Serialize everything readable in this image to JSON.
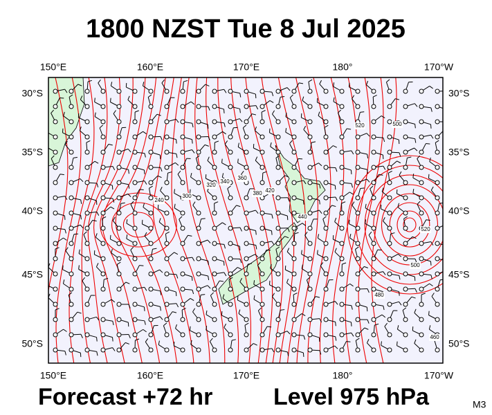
{
  "header": {
    "title": "1800 NZST Tue 8 Jul 2025"
  },
  "map": {
    "lon_labels": [
      "150°E",
      "160°E",
      "170°E",
      "180°",
      "170°W"
    ],
    "lat_labels": [
      "30°S",
      "35°S",
      "40°S",
      "45°S",
      "50°S"
    ],
    "contour_labels": [
      "240",
      "300",
      "320",
      "340",
      "360",
      "380",
      "420",
      "440",
      "500",
      "520",
      "480",
      "460",
      "520",
      "500"
    ]
  },
  "footer": {
    "forecast": "Forecast +72 hr",
    "level": "Level 975 hPa",
    "code": "M3"
  }
}
